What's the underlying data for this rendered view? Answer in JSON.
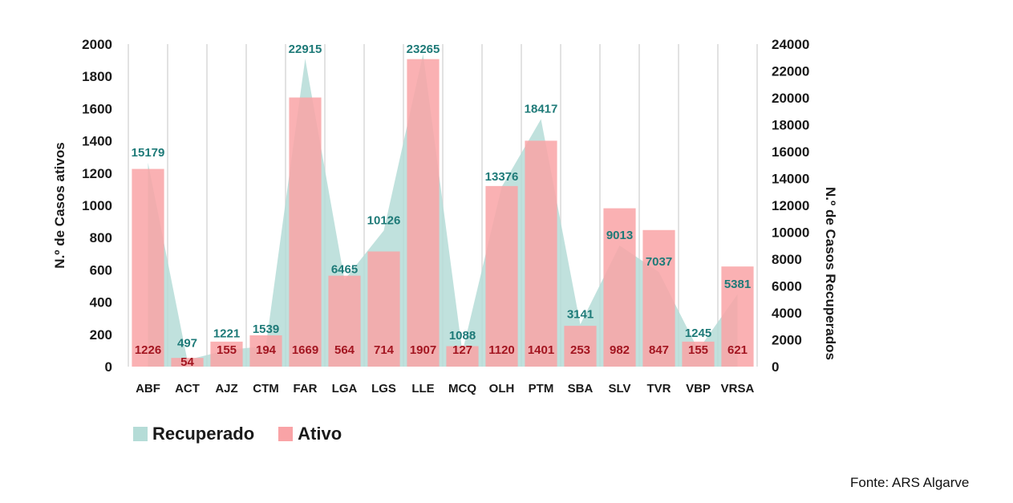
{
  "chart_data": {
    "type": "bar",
    "categories": [
      "ABF",
      "ACT",
      "AJZ",
      "CTM",
      "FAR",
      "LGA",
      "LGS",
      "LLE",
      "MCQ",
      "OLH",
      "PTM",
      "SBA",
      "SLV",
      "TVR",
      "VBP",
      "VRSA"
    ],
    "series": [
      {
        "name": "Ativo",
        "type": "bar",
        "axis": "left",
        "color": "#f9a3a6",
        "values": [
          1226,
          54,
          155,
          194,
          1669,
          564,
          714,
          1907,
          127,
          1120,
          1401,
          253,
          982,
          847,
          155,
          621
        ]
      },
      {
        "name": "Recuperado",
        "type": "area",
        "axis": "right",
        "color": "#b5dcd7",
        "values": [
          15179,
          497,
          1221,
          1539,
          22915,
          6465,
          10126,
          23265,
          1088,
          13376,
          18417,
          3141,
          9013,
          7037,
          1245,
          5381
        ]
      }
    ],
    "ylabel": "N.º de Casos ativos",
    "y2label": "N.º de Casos Recuperados",
    "ylim": [
      0,
      2000
    ],
    "y2lim": [
      0,
      24000
    ],
    "yticks": [
      0,
      200,
      400,
      600,
      800,
      1000,
      1200,
      1400,
      1600,
      1800,
      2000
    ],
    "y2ticks": [
      0,
      2000,
      4000,
      6000,
      8000,
      10000,
      12000,
      14000,
      16000,
      18000,
      20000,
      22000,
      24000
    ],
    "grid": "vertical",
    "legend_position": "bottom-left"
  },
  "legend": [
    {
      "label": "Recuperado",
      "color": "#b5dcd7"
    },
    {
      "label": "Ativo",
      "color": "#f9a3a6"
    }
  ],
  "source": "Fonte: ARS Algarve"
}
